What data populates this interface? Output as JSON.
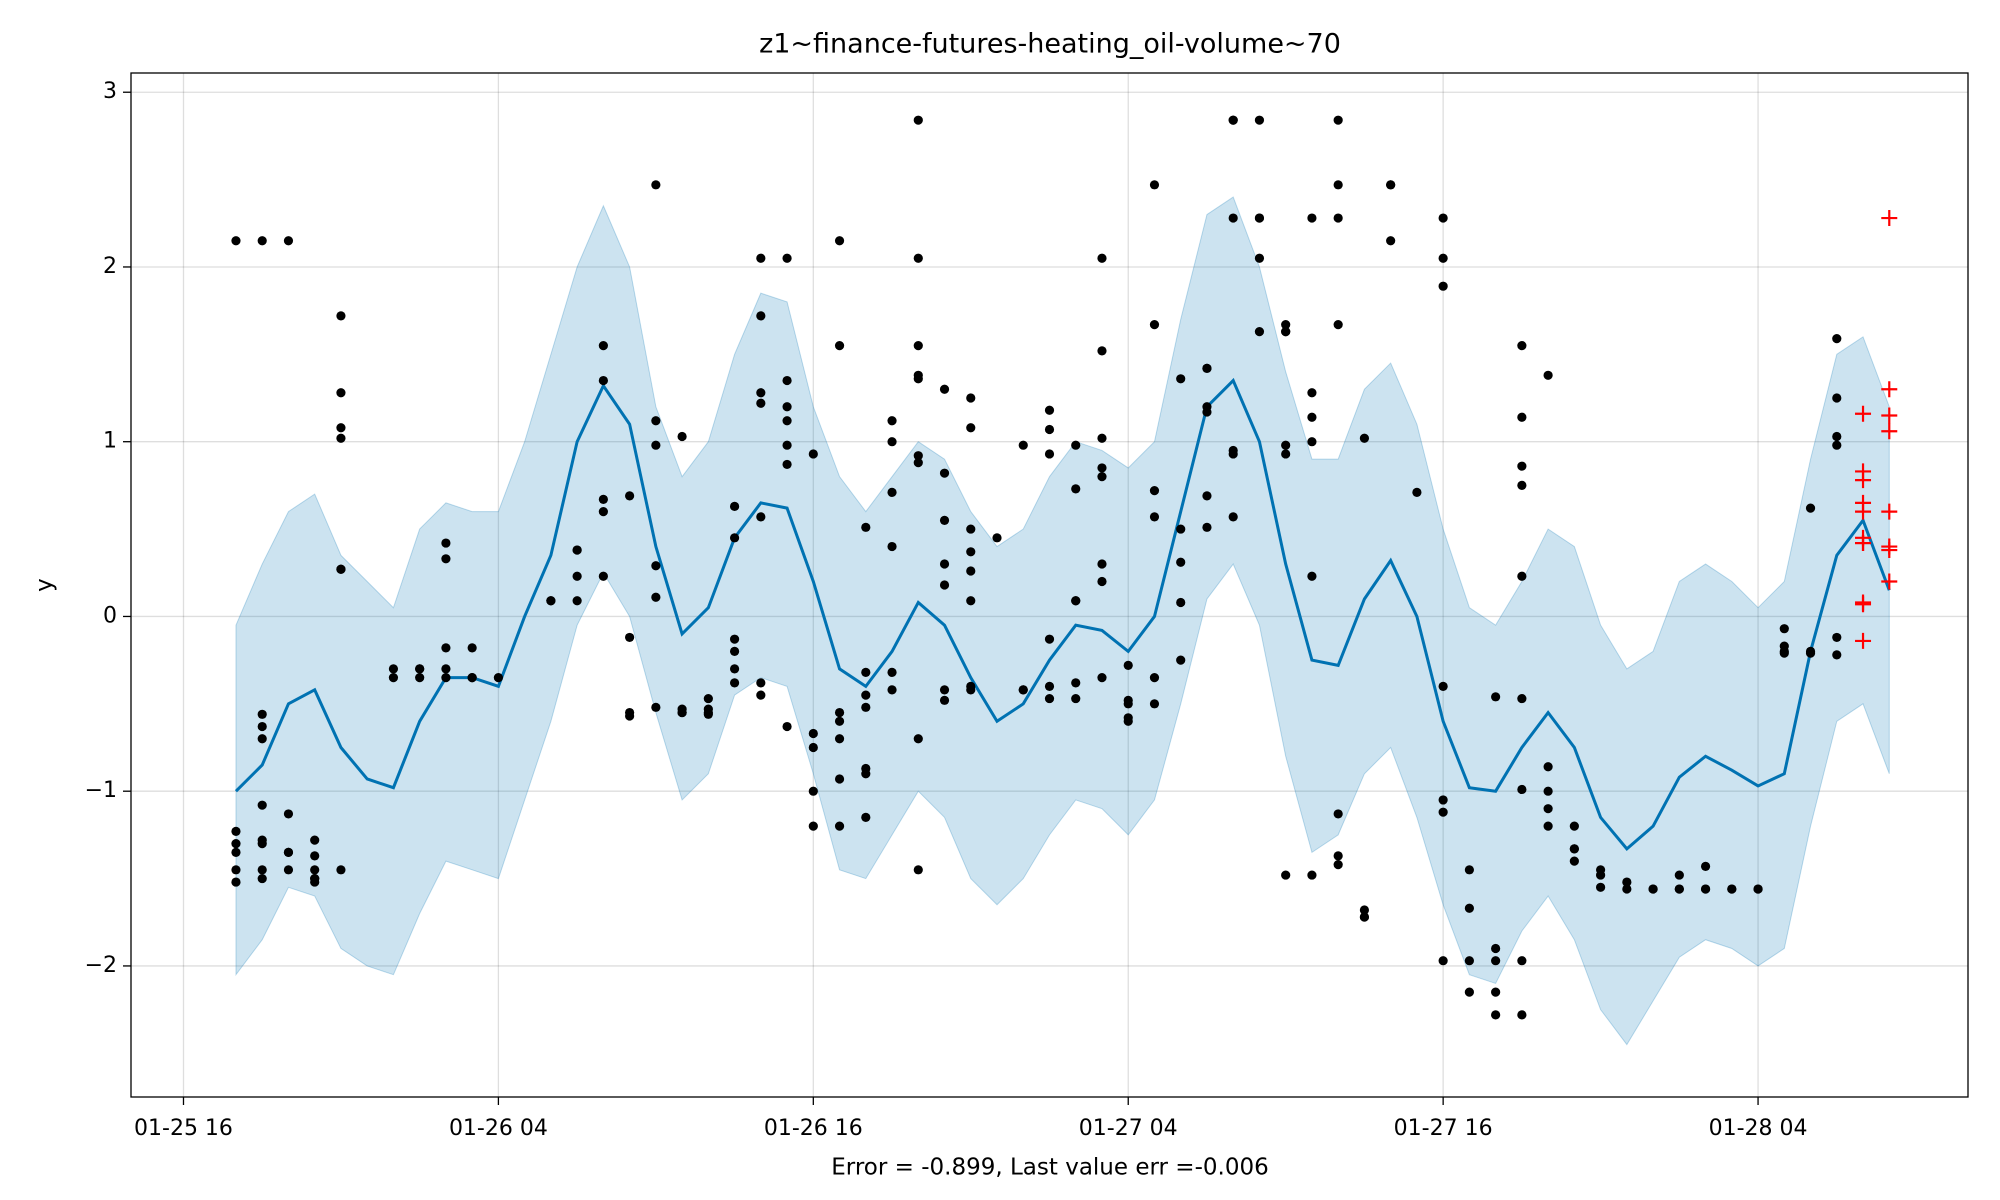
{
  "chart_data": {
    "type": "line",
    "title": "z1~finance-futures-heating_oil-volume~70",
    "xlabel": "Error = -0.899, Last value err =-0.006",
    "ylabel": "y",
    "grid": true,
    "xlim": [
      "01-25 14",
      "01-28 12"
    ],
    "xticks": [
      "01-25 16",
      "01-26 04",
      "01-26 16",
      "01-27 04",
      "01-27 16",
      "01-28 04"
    ],
    "ylim": [
      -2.75,
      3.11
    ],
    "yticks": [
      {
        "value": -2,
        "label": "−2"
      },
      {
        "value": -1,
        "label": "−1"
      },
      0,
      1,
      2,
      3
    ],
    "series": [
      {
        "type": "line",
        "color": "#0072b2",
        "x": [
          "01-25 18",
          "01-25 19",
          "01-25 20",
          "01-25 21",
          "01-25 22",
          "01-25 23",
          "01-26 00",
          "01-26 01",
          "01-26 02",
          "01-26 03",
          "01-26 04",
          "01-26 05",
          "01-26 06",
          "01-26 07",
          "01-26 08",
          "01-26 09",
          "01-26 10",
          "01-26 11",
          "01-26 12",
          "01-26 13",
          "01-26 14",
          "01-26 15",
          "01-26 16",
          "01-26 17",
          "01-26 18",
          "01-26 19",
          "01-26 20",
          "01-26 21",
          "01-26 22",
          "01-26 23",
          "01-27 00",
          "01-27 01",
          "01-27 02",
          "01-27 03",
          "01-27 04",
          "01-27 05",
          "01-27 06",
          "01-27 07",
          "01-27 08",
          "01-27 09",
          "01-27 10",
          "01-27 11",
          "01-27 12",
          "01-27 13",
          "01-27 14",
          "01-27 15",
          "01-27 16",
          "01-27 17",
          "01-27 18",
          "01-27 19",
          "01-27 20",
          "01-27 21",
          "01-27 22",
          "01-27 23",
          "01-28 00",
          "01-28 01",
          "01-28 02",
          "01-28 03",
          "01-28 04",
          "01-28 05",
          "01-28 06",
          "01-28 07",
          "01-28 08",
          "01-28 09"
        ],
        "values": [
          -1.0,
          -0.85,
          -0.5,
          -0.42,
          -0.75,
          -0.93,
          -0.98,
          -0.6,
          -0.35,
          -0.35,
          -0.4,
          0.0,
          0.35,
          1.0,
          1.32,
          1.1,
          0.4,
          -0.1,
          0.05,
          0.45,
          0.65,
          0.62,
          0.2,
          -0.3,
          -0.4,
          -0.2,
          0.08,
          -0.05,
          -0.35,
          -0.6,
          -0.5,
          -0.25,
          -0.05,
          -0.08,
          -0.2,
          0.0,
          0.6,
          1.2,
          1.35,
          1.0,
          0.3,
          -0.25,
          -0.28,
          0.1,
          0.32,
          0.0,
          -0.6,
          -0.98,
          -1.0,
          -0.75,
          -0.55,
          -0.75,
          -1.15,
          -1.33,
          -1.2,
          -0.92,
          -0.8,
          -0.88,
          -0.97,
          -0.9,
          -0.2,
          0.35,
          0.55,
          0.15
        ],
        "upper": [
          -0.05,
          0.3,
          0.6,
          0.7,
          0.35,
          0.2,
          0.05,
          0.5,
          0.65,
          0.6,
          0.6,
          1.0,
          1.5,
          2.0,
          2.35,
          2.0,
          1.2,
          0.8,
          1.0,
          1.5,
          1.85,
          1.8,
          1.2,
          0.8,
          0.6,
          0.8,
          1.0,
          0.9,
          0.6,
          0.4,
          0.5,
          0.8,
          1.0,
          0.95,
          0.85,
          1.0,
          1.7,
          2.3,
          2.4,
          2.0,
          1.4,
          0.9,
          0.9,
          1.3,
          1.45,
          1.1,
          0.5,
          0.05,
          -0.05,
          0.2,
          0.5,
          0.4,
          -0.05,
          -0.3,
          -0.2,
          0.2,
          0.3,
          0.2,
          0.05,
          0.2,
          0.9,
          1.5,
          1.6,
          1.2
        ],
        "lower": [
          -2.05,
          -1.85,
          -1.55,
          -1.6,
          -1.9,
          -2.0,
          -2.05,
          -1.7,
          -1.4,
          -1.45,
          -1.5,
          -1.05,
          -0.6,
          -0.05,
          0.25,
          0.0,
          -0.55,
          -1.05,
          -0.9,
          -0.45,
          -0.35,
          -0.4,
          -0.9,
          -1.45,
          -1.5,
          -1.25,
          -1.0,
          -1.15,
          -1.5,
          -1.65,
          -1.5,
          -1.25,
          -1.05,
          -1.1,
          -1.25,
          -1.05,
          -0.5,
          0.1,
          0.3,
          -0.05,
          -0.8,
          -1.35,
          -1.25,
          -0.9,
          -0.75,
          -1.15,
          -1.65,
          -2.05,
          -2.1,
          -1.8,
          -1.6,
          -1.85,
          -2.25,
          -2.45,
          -2.2,
          -1.95,
          -1.85,
          -1.9,
          -2.0,
          -1.9,
          -1.2,
          -0.6,
          -0.5,
          -0.9
        ]
      },
      {
        "type": "scatter",
        "marker": "dot",
        "color": "#000000",
        "x": [
          "01-25 18",
          "01-25 18",
          "01-25 18",
          "01-25 18",
          "01-25 18",
          "01-25 18",
          "01-25 19",
          "01-25 19",
          "01-25 19",
          "01-25 19",
          "01-25 19",
          "01-25 19",
          "01-25 19",
          "01-25 19",
          "01-25 19",
          "01-25 20",
          "01-25 20",
          "01-25 20",
          "01-25 20",
          "01-25 20",
          "01-25 21",
          "01-25 21",
          "01-25 21",
          "01-25 21",
          "01-25 21",
          "01-25 21",
          "01-25 22",
          "01-25 22",
          "01-25 22",
          "01-25 22",
          "01-25 22",
          "01-25 22",
          "01-25 22",
          "01-26 00",
          "01-26 00",
          "01-26 01",
          "01-26 01",
          "01-26 01",
          "01-26 02",
          "01-26 02",
          "01-26 02",
          "01-26 02",
          "01-26 02",
          "01-26 03",
          "01-26 03",
          "01-26 03",
          "01-26 04",
          "01-26 06",
          "01-26 06",
          "01-26 07",
          "01-26 07",
          "01-26 07",
          "01-26 07",
          "01-26 08",
          "01-26 08",
          "01-26 08",
          "01-26 08",
          "01-26 08",
          "01-26 09",
          "01-26 09",
          "01-26 09",
          "01-26 09",
          "01-26 10",
          "01-26 10",
          "01-26 10",
          "01-26 10",
          "01-26 10",
          "01-26 10",
          "01-26 11",
          "01-26 11",
          "01-26 11",
          "01-26 11",
          "01-26 12",
          "01-26 12",
          "01-26 12",
          "01-26 12",
          "01-26 13",
          "01-26 13",
          "01-26 13",
          "01-26 13",
          "01-26 13",
          "01-26 13",
          "01-26 14",
          "01-26 14",
          "01-26 14",
          "01-26 14",
          "01-26 14",
          "01-26 14",
          "01-26 14",
          "01-26 15",
          "01-26 15",
          "01-26 15",
          "01-26 15",
          "01-26 15",
          "01-26 15",
          "01-26 15",
          "01-26 16",
          "01-26 16",
          "01-26 16",
          "01-26 16",
          "01-26 16",
          "01-26 17",
          "01-26 17",
          "01-26 17",
          "01-26 17",
          "01-26 17",
          "01-26 17",
          "01-26 17",
          "01-26 18",
          "01-26 18",
          "01-26 18",
          "01-26 18",
          "01-26 18",
          "01-26 18",
          "01-26 18",
          "01-26 19",
          "01-26 19",
          "01-26 19",
          "01-26 19",
          "01-26 19",
          "01-26 19",
          "01-26 20",
          "01-26 20",
          "01-26 20",
          "01-26 20",
          "01-26 20",
          "01-26 20",
          "01-26 20",
          "01-26 20",
          "01-26 20",
          "01-26 21",
          "01-26 21",
          "01-26 21",
          "01-26 21",
          "01-26 21",
          "01-26 21",
          "01-26 21",
          "01-26 22",
          "01-26 22",
          "01-26 22",
          "01-26 22",
          "01-26 22",
          "01-26 22",
          "01-26 22",
          "01-26 22",
          "01-26 23",
          "01-27 00",
          "01-27 00",
          "01-27 00",
          "01-27 01",
          "01-27 01",
          "01-27 01",
          "01-27 01",
          "01-27 01",
          "01-27 01",
          "01-27 02",
          "01-27 02",
          "01-27 02",
          "01-27 02",
          "01-27 02",
          "01-27 02",
          "01-27 03",
          "01-27 03",
          "01-27 03",
          "01-27 03",
          "01-27 03",
          "01-27 03",
          "01-27 03",
          "01-27 03",
          "01-27 04",
          "01-27 04",
          "01-27 04",
          "01-27 04",
          "01-27 04",
          "01-27 05",
          "01-27 05",
          "01-27 05",
          "01-27 05",
          "01-27 05",
          "01-27 05",
          "01-27 06",
          "01-27 06",
          "01-27 06",
          "01-27 06",
          "01-27 06",
          "01-27 07",
          "01-27 07",
          "01-27 07",
          "01-27 07",
          "01-27 07",
          "01-27 07",
          "01-27 08",
          "01-27 08",
          "01-27 08",
          "01-27 08",
          "01-27 08",
          "01-27 08",
          "01-27 09",
          "01-27 09",
          "01-27 09",
          "01-27 09",
          "01-27 09",
          "01-27 10",
          "01-27 10",
          "01-27 10",
          "01-27 10",
          "01-27 10",
          "01-27 10",
          "01-27 11",
          "01-27 11",
          "01-27 11",
          "01-27 11",
          "01-27 11",
          "01-27 11",
          "01-27 12",
          "01-27 12",
          "01-27 12",
          "01-27 12",
          "01-27 12",
          "01-27 12",
          "01-27 12",
          "01-27 13",
          "01-27 13",
          "01-27 13",
          "01-27 13",
          "01-27 14",
          "01-27 14",
          "01-27 14",
          "01-27 15",
          "01-27 16",
          "01-27 16",
          "01-27 16",
          "01-27 16",
          "01-27 16",
          "01-27 16",
          "01-27 16",
          "01-27 17",
          "01-27 17",
          "01-27 17",
          "01-27 17",
          "01-27 18",
          "01-27 18",
          "01-27 18",
          "01-27 18",
          "01-27 18",
          "01-27 19",
          "01-27 19",
          "01-27 19",
          "01-27 19",
          "01-27 19",
          "01-27 19",
          "01-27 19",
          "01-27 19",
          "01-27 19",
          "01-27 20",
          "01-27 20",
          "01-27 20",
          "01-27 20",
          "01-27 20",
          "01-27 21",
          "01-27 21",
          "01-27 21",
          "01-27 21",
          "01-27 22",
          "01-27 22",
          "01-27 22",
          "01-27 23",
          "01-27 23",
          "01-28 00",
          "01-28 00",
          "01-28 01",
          "01-28 01",
          "01-28 01",
          "01-28 02",
          "01-28 02",
          "01-28 02",
          "01-28 03",
          "01-28 03",
          "01-28 04",
          "01-28 04",
          "01-28 05",
          "01-28 05",
          "01-28 05",
          "01-28 05",
          "01-28 06",
          "01-28 06",
          "01-28 06",
          "01-28 07",
          "01-28 07",
          "01-28 07",
          "01-28 07",
          "01-28 07",
          "01-28 07"
        ],
        "values": [
          -1.52,
          -1.35,
          -1.23,
          -1.3,
          -1.45,
          2.15,
          -1.5,
          -1.28,
          -1.08,
          -0.63,
          -0.7,
          -0.56,
          -1.3,
          -1.45,
          2.15,
          2.15,
          -1.35,
          -1.13,
          -1.35,
          -1.45,
          -1.5,
          -1.45,
          -1.52,
          -1.5,
          -1.28,
          -1.37,
          1.28,
          1.08,
          1.72,
          1.02,
          0.27,
          0.27,
          -1.45,
          -0.3,
          -0.35,
          -0.35,
          -0.3,
          -0.3,
          0.42,
          0.33,
          -0.18,
          -0.35,
          -0.3,
          -0.18,
          -0.35,
          -0.35,
          -0.35,
          0.09,
          0.09,
          0.38,
          0.23,
          0.09,
          0.38,
          0.6,
          0.67,
          1.55,
          1.35,
          0.23,
          -0.12,
          0.69,
          -0.57,
          -0.55,
          2.47,
          0.98,
          1.12,
          0.29,
          0.11,
          -0.52,
          -0.55,
          -0.53,
          1.03,
          -0.55,
          -0.53,
          -0.55,
          -0.56,
          -0.47,
          0.45,
          -0.13,
          -0.2,
          -0.3,
          -0.38,
          0.63,
          0.57,
          1.22,
          2.05,
          1.72,
          1.28,
          -0.45,
          -0.38,
          1.2,
          1.35,
          2.05,
          1.12,
          0.98,
          0.87,
          -0.63,
          -0.67,
          -1.0,
          -1.2,
          -0.75,
          0.93,
          -0.55,
          -1.2,
          -0.93,
          -0.6,
          1.55,
          2.15,
          -0.7,
          -1.15,
          -0.32,
          -0.45,
          -0.52,
          -0.87,
          -0.9,
          0.51,
          1.12,
          0.71,
          1.0,
          0.4,
          -0.42,
          -0.32,
          1.36,
          0.92,
          -0.7,
          2.84,
          2.05,
          1.55,
          0.88,
          -1.45,
          1.38,
          1.3,
          0.55,
          0.82,
          0.3,
          -0.48,
          -0.42,
          0.18,
          0.5,
          0.37,
          0.26,
          0.09,
          1.08,
          -0.42,
          -0.4,
          1.25,
          0.45,
          0.98,
          -0.42,
          -0.42,
          1.07,
          0.93,
          1.18,
          -0.13,
          -0.4,
          -0.47,
          0.98,
          0.73,
          -0.47,
          -0.38,
          0.09,
          0.09,
          0.3,
          0.2,
          0.85,
          0.8,
          1.52,
          2.05,
          1.02,
          -0.35,
          -0.5,
          -0.6,
          -0.28,
          -0.58,
          -0.48,
          -0.5,
          -0.35,
          2.47,
          1.67,
          0.57,
          0.72,
          1.36,
          0.31,
          0.08,
          -0.25,
          0.5,
          1.42,
          1.42,
          0.69,
          0.51,
          1.2,
          1.17,
          2.84,
          2.84,
          0.93,
          0.57,
          0.95,
          2.28,
          2.84,
          2.28,
          2.05,
          1.63,
          2.28,
          1.63,
          1.67,
          1.63,
          0.98,
          0.93,
          -1.48,
          -1.48,
          2.28,
          1.14,
          1.0,
          1.28,
          0.23,
          2.28,
          2.84,
          1.67,
          2.47,
          -1.13,
          -1.37,
          -1.42,
          -1.68,
          -1.72,
          -1.72,
          1.02,
          2.47,
          2.15,
          2.47,
          0.71,
          2.28,
          1.89,
          2.05,
          -1.97,
          -1.05,
          -1.12,
          -0.4,
          -1.45,
          -1.67,
          -1.97,
          -2.15,
          -1.9,
          -2.15,
          -2.28,
          -1.97,
          -0.46,
          -0.47,
          -2.28,
          -1.97,
          0.23,
          0.86,
          1.14,
          1.55,
          0.75,
          -0.99,
          1.38,
          -1.0,
          -0.86,
          -1.1,
          -1.2,
          -1.33,
          -1.4,
          -1.2,
          -1.33,
          -1.48,
          -1.55,
          -1.45,
          -1.56,
          -1.52,
          -1.56,
          -1.56,
          -1.56,
          -1.48,
          -1.56,
          -1.56,
          -1.43,
          -1.56,
          -1.56,
          -1.56,
          -1.56,
          -1.56,
          -0.17,
          -0.2,
          -0.07,
          -0.21,
          -0.21,
          -0.2,
          0.62,
          -0.12,
          -0.22,
          1.59,
          1.25,
          1.03,
          0.98
        ]
      },
      {
        "type": "scatter",
        "marker": "plus",
        "color": "#ff0000",
        "x": [
          "01-28 08",
          "01-28 08",
          "01-28 08",
          "01-28 08",
          "01-28 08",
          "01-28 08",
          "01-28 08",
          "01-28 08",
          "01-28 08",
          "01-28 08",
          "01-28 08",
          "01-28 09",
          "01-28 09",
          "01-28 09",
          "01-28 09",
          "01-28 09",
          "01-28 09",
          "01-28 09",
          "01-28 09"
        ],
        "values": [
          0.78,
          0.6,
          0.42,
          0.08,
          0.07,
          -0.14,
          1.16,
          0.83,
          0.65,
          0.45,
          0.42,
          0.4,
          0.2,
          0.6,
          2.28,
          1.3,
          1.15,
          1.06,
          0.38
        ]
      }
    ]
  }
}
